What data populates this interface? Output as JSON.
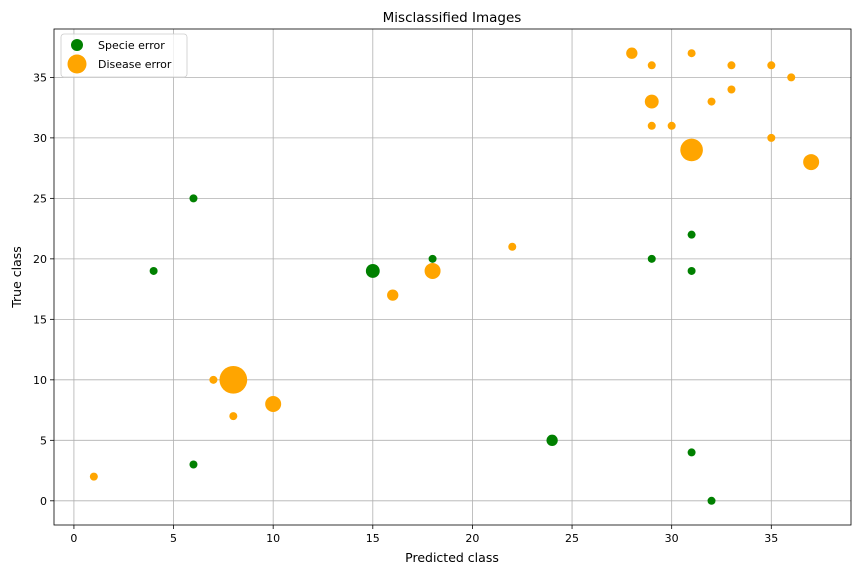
{
  "chart_data": {
    "type": "scatter",
    "title": "Misclassified Images",
    "xlabel": "Predicted class",
    "ylabel": "True class",
    "xlim": [
      -1,
      39
    ],
    "ylim": [
      -2,
      39
    ],
    "xticks": [
      0,
      5,
      10,
      15,
      20,
      25,
      30,
      35
    ],
    "yticks": [
      0,
      5,
      10,
      15,
      20,
      25,
      30,
      35
    ],
    "grid": true,
    "legend_position": "top-left",
    "series": [
      {
        "name": "Specie error",
        "color": "#008000",
        "points": [
          {
            "x": 6,
            "y": 25,
            "count": 1
          },
          {
            "x": 4,
            "y": 19,
            "count": 1
          },
          {
            "x": 15,
            "y": 19,
            "count": 3
          },
          {
            "x": 18,
            "y": 20,
            "count": 1
          },
          {
            "x": 6,
            "y": 3,
            "count": 1
          },
          {
            "x": 24,
            "y": 5,
            "count": 2
          },
          {
            "x": 29,
            "y": 20,
            "count": 1
          },
          {
            "x": 31,
            "y": 22,
            "count": 1
          },
          {
            "x": 31,
            "y": 19,
            "count": 1
          },
          {
            "x": 31,
            "y": 4,
            "count": 1
          },
          {
            "x": 32,
            "y": 0,
            "count": 1
          }
        ]
      },
      {
        "name": "Disease error",
        "color": "#ffa500",
        "points": [
          {
            "x": 1,
            "y": 2,
            "count": 1
          },
          {
            "x": 7,
            "y": 10,
            "count": 1
          },
          {
            "x": 8,
            "y": 10,
            "count": 12
          },
          {
            "x": 8,
            "y": 7,
            "count": 1
          },
          {
            "x": 10,
            "y": 8,
            "count": 4
          },
          {
            "x": 16,
            "y": 17,
            "count": 2
          },
          {
            "x": 18,
            "y": 19,
            "count": 4
          },
          {
            "x": 22,
            "y": 21,
            "count": 1
          },
          {
            "x": 28,
            "y": 37,
            "count": 2
          },
          {
            "x": 29,
            "y": 36,
            "count": 1
          },
          {
            "x": 29,
            "y": 33,
            "count": 3
          },
          {
            "x": 29,
            "y": 31,
            "count": 1
          },
          {
            "x": 30,
            "y": 31,
            "count": 1
          },
          {
            "x": 31,
            "y": 37,
            "count": 1
          },
          {
            "x": 31,
            "y": 29,
            "count": 8
          },
          {
            "x": 32,
            "y": 33,
            "count": 1
          },
          {
            "x": 33,
            "y": 36,
            "count": 1
          },
          {
            "x": 33,
            "y": 34,
            "count": 1
          },
          {
            "x": 35,
            "y": 36,
            "count": 1
          },
          {
            "x": 35,
            "y": 30,
            "count": 1
          },
          {
            "x": 36,
            "y": 35,
            "count": 1
          },
          {
            "x": 37,
            "y": 28,
            "count": 4
          }
        ]
      }
    ]
  }
}
